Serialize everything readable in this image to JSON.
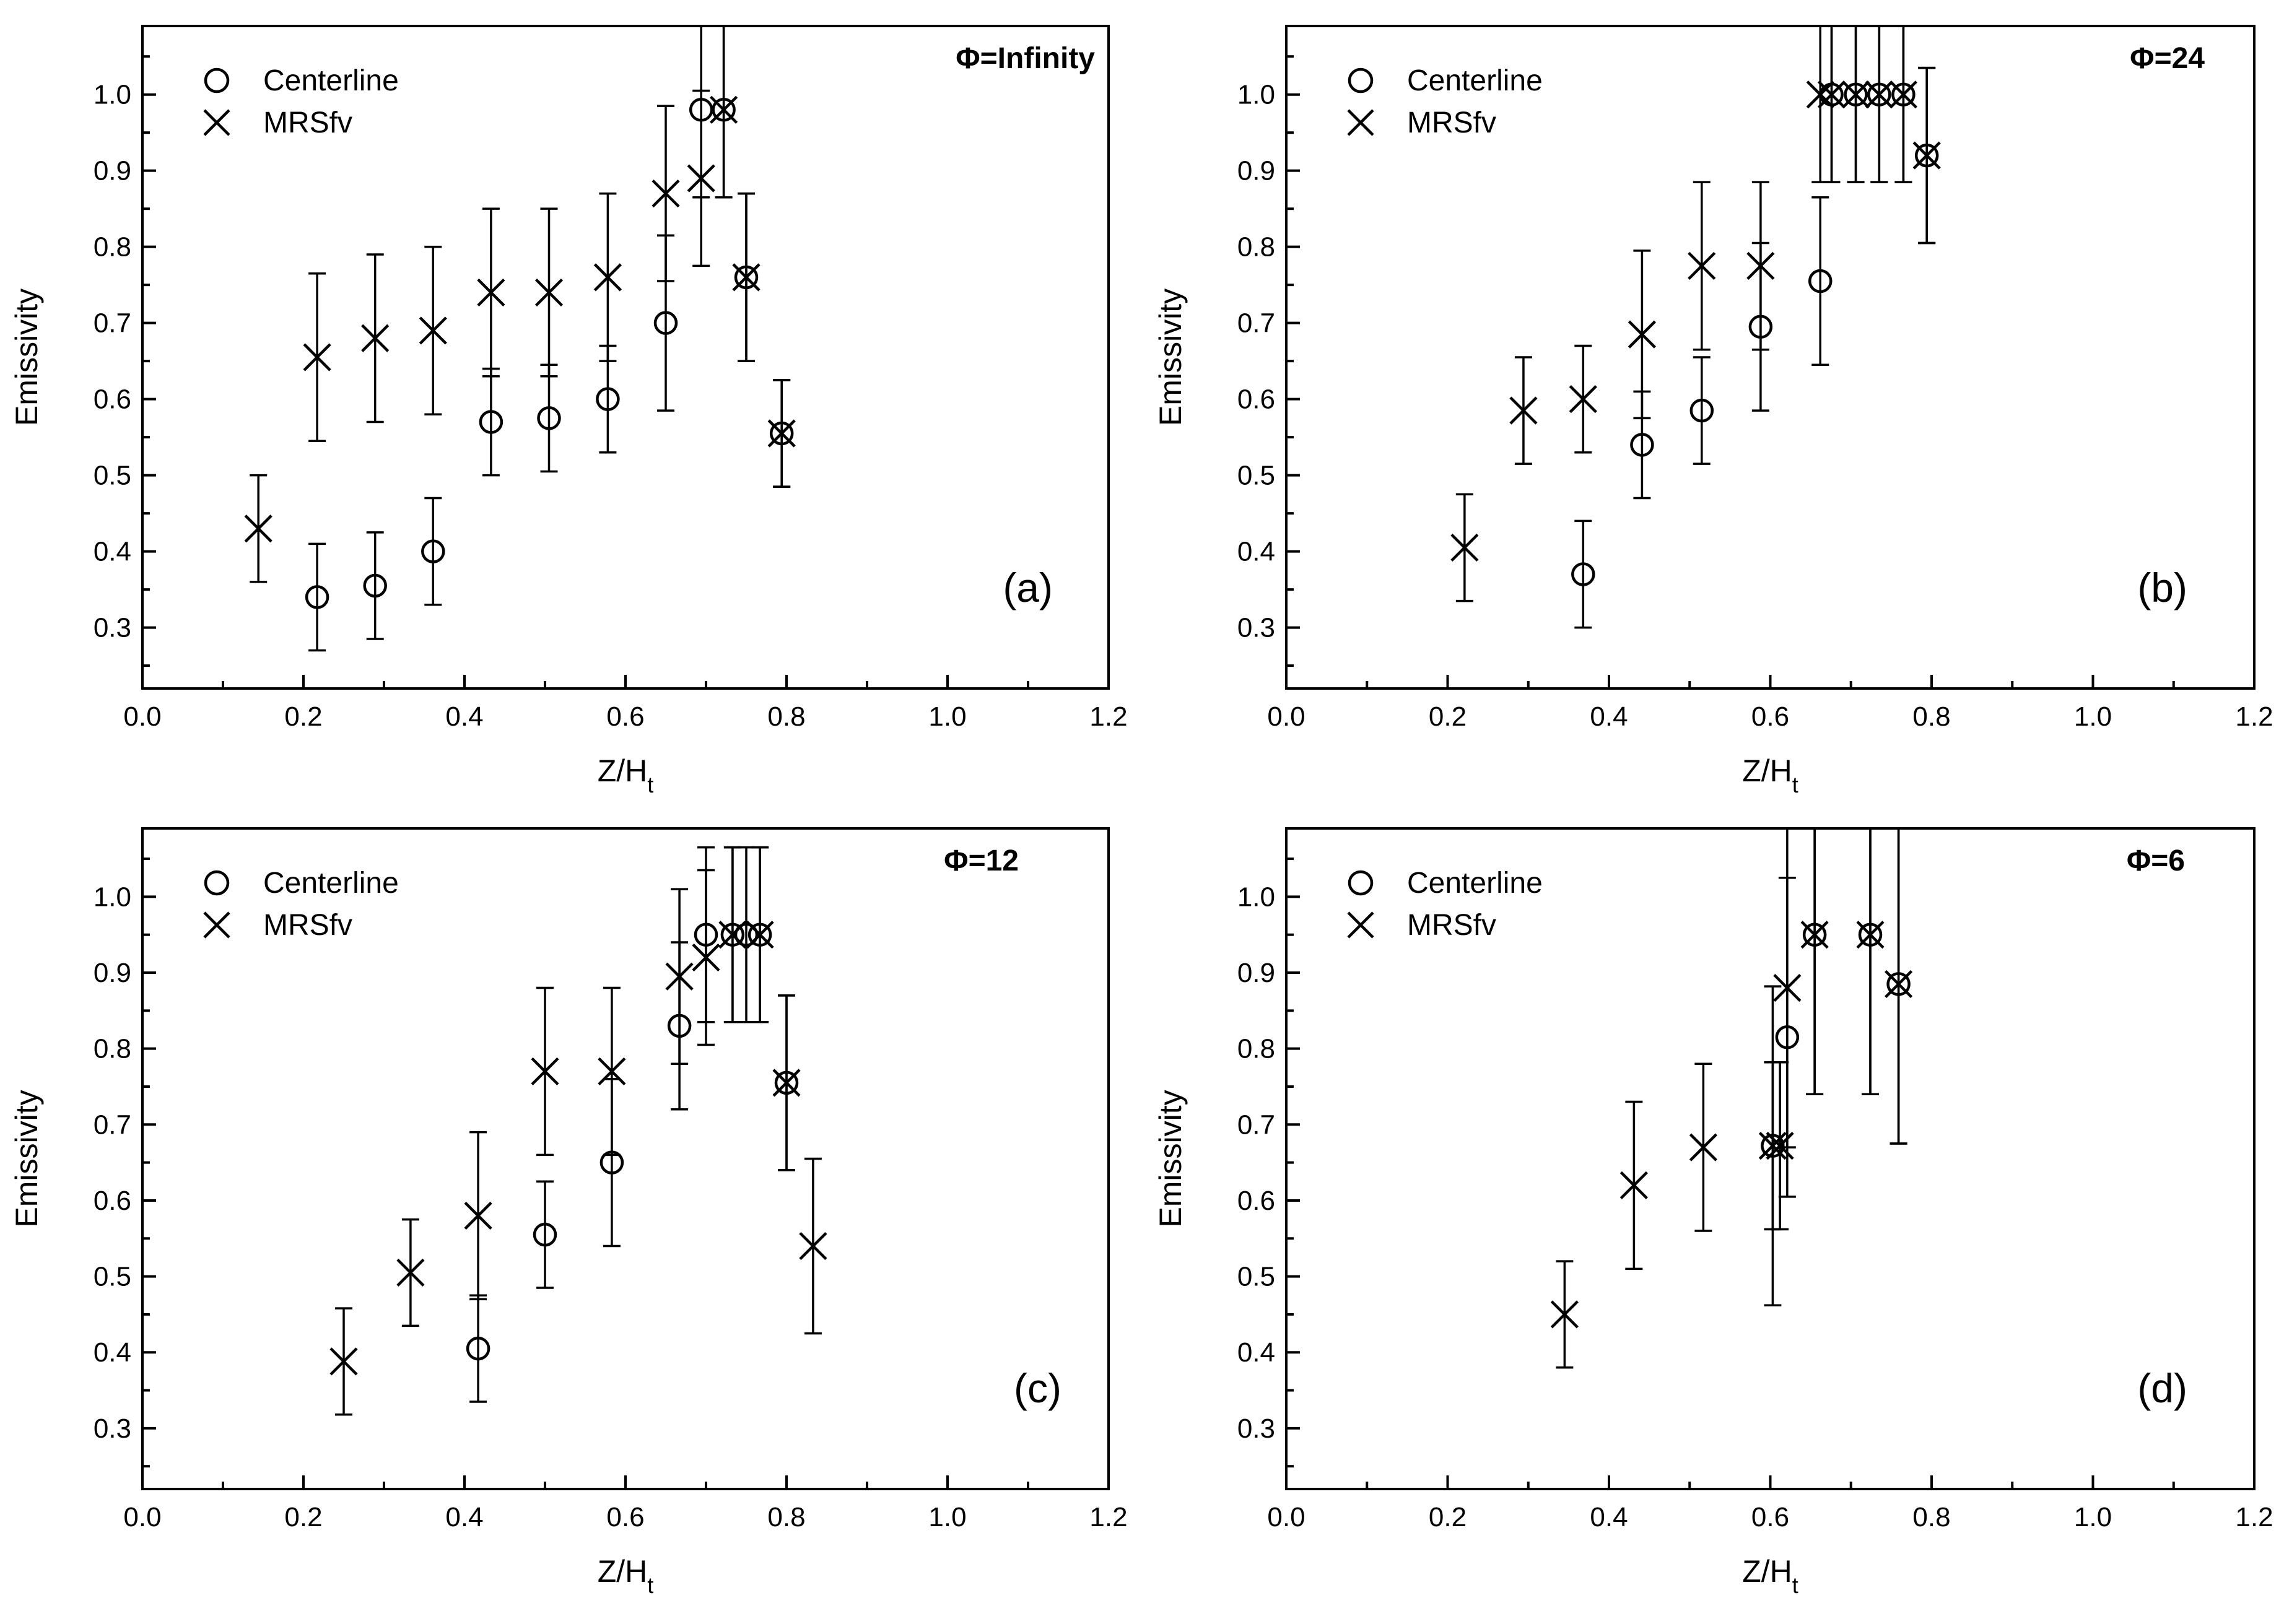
{
  "chart_data": [
    {
      "type": "scatter",
      "panel_label": "(a)",
      "title": "Φ=Infinity",
      "xlabel": "Z/H",
      "xlabel_sub": "t",
      "ylabel": "Emissivity",
      "xlim": [
        0.0,
        1.2
      ],
      "ylim": [
        0.22,
        1.09
      ],
      "x_ticks": [
        "0.0",
        "0.2",
        "0.4",
        "0.6",
        "0.8",
        "1.0",
        "1.2"
      ],
      "y_ticks": [
        "0.3",
        "0.4",
        "0.5",
        "0.6",
        "0.7",
        "0.8",
        "0.9",
        "1.0"
      ],
      "legend": [
        "Centerline",
        "MRSfv"
      ],
      "series": [
        {
          "name": "Centerline",
          "marker": "circle",
          "x": [
            0.217,
            0.289,
            0.361,
            0.433,
            0.505,
            0.578,
            0.65,
            0.694,
            0.722,
            0.75,
            0.794
          ],
          "y": [
            0.34,
            0.355,
            0.4,
            0.57,
            0.575,
            0.6,
            0.7,
            0.98,
            0.98,
            0.76,
            0.555
          ],
          "err": [
            0.07,
            0.07,
            0.07,
            0.07,
            0.07,
            0.07,
            0.115,
            0.115,
            0.115,
            0.11,
            0.07
          ]
        },
        {
          "name": "MRSfv",
          "marker": "x",
          "x": [
            0.144,
            0.217,
            0.289,
            0.361,
            0.433,
            0.505,
            0.578,
            0.65,
            0.694,
            0.722,
            0.75,
            0.794
          ],
          "y": [
            0.43,
            0.655,
            0.68,
            0.69,
            0.74,
            0.74,
            0.76,
            0.87,
            0.89,
            0.98,
            0.76,
            0.555
          ],
          "err": [
            0.07,
            0.11,
            0.11,
            0.11,
            0.11,
            0.11,
            0.11,
            0.115,
            0.115,
            0.115,
            0.11,
            0.07
          ]
        }
      ]
    },
    {
      "type": "scatter",
      "panel_label": "(b)",
      "title": "Φ=24",
      "xlabel": "Z/H",
      "xlabel_sub": "t",
      "ylabel": "Emissivity",
      "xlim": [
        0.0,
        1.2
      ],
      "ylim": [
        0.22,
        1.09
      ],
      "x_ticks": [
        "0.0",
        "0.2",
        "0.4",
        "0.6",
        "0.8",
        "1.0",
        "1.2"
      ],
      "y_ticks": [
        "0.3",
        "0.4",
        "0.5",
        "0.6",
        "0.7",
        "0.8",
        "0.9",
        "1.0"
      ],
      "legend": [
        "Centerline",
        "MRSfv"
      ],
      "series": [
        {
          "name": "Centerline",
          "marker": "circle",
          "x": [
            0.368,
            0.441,
            0.515,
            0.588,
            0.662,
            0.676,
            0.706,
            0.735,
            0.765,
            0.794
          ],
          "y": [
            0.37,
            0.54,
            0.585,
            0.695,
            0.755,
            1.0,
            1.0,
            1.0,
            1.0,
            0.92
          ],
          "err": [
            0.07,
            0.07,
            0.07,
            0.11,
            0.11,
            0.115,
            0.115,
            0.115,
            0.115,
            0.115
          ]
        },
        {
          "name": "MRSfv",
          "marker": "x",
          "x": [
            0.221,
            0.294,
            0.368,
            0.441,
            0.515,
            0.588,
            0.662,
            0.676,
            0.706,
            0.735,
            0.765,
            0.794
          ],
          "y": [
            0.405,
            0.585,
            0.6,
            0.685,
            0.775,
            0.775,
            1.0,
            1.0,
            1.0,
            1.0,
            1.0,
            0.92
          ],
          "err": [
            0.07,
            0.07,
            0.07,
            0.11,
            0.11,
            0.11,
            0.115,
            0.115,
            0.115,
            0.115,
            0.115,
            0.115
          ]
        }
      ]
    },
    {
      "type": "scatter",
      "panel_label": "(c)",
      "title": "Φ=12",
      "xlabel": "Z/H",
      "xlabel_sub": "t",
      "ylabel": "Emissivity",
      "xlim": [
        0.0,
        1.2
      ],
      "ylim": [
        0.22,
        1.09
      ],
      "x_ticks": [
        "0.0",
        "0.2",
        "0.4",
        "0.6",
        "0.8",
        "1.0",
        "1.2"
      ],
      "y_ticks": [
        "0.3",
        "0.4",
        "0.5",
        "0.6",
        "0.7",
        "0.8",
        "0.9",
        "1.0"
      ],
      "legend": [
        "Centerline",
        "MRSfv"
      ],
      "series": [
        {
          "name": "Centerline",
          "marker": "circle",
          "x": [
            0.417,
            0.5,
            0.583,
            0.667,
            0.7,
            0.733,
            0.75,
            0.767,
            0.8
          ],
          "y": [
            0.405,
            0.555,
            0.65,
            0.83,
            0.95,
            0.95,
            0.95,
            0.95,
            0.755
          ],
          "err": [
            0.07,
            0.07,
            0.11,
            0.11,
            0.115,
            0.115,
            0.115,
            0.115,
            0.115
          ]
        },
        {
          "name": "MRSfv",
          "marker": "x",
          "x": [
            0.25,
            0.333,
            0.417,
            0.5,
            0.583,
            0.667,
            0.7,
            0.733,
            0.767,
            0.8,
            0.833
          ],
          "y": [
            0.388,
            0.505,
            0.58,
            0.77,
            0.77,
            0.895,
            0.92,
            0.95,
            0.95,
            0.755,
            0.54
          ],
          "err": [
            0.07,
            0.07,
            0.11,
            0.11,
            0.11,
            0.115,
            0.115,
            0.115,
            0.115,
            0.115,
            0.115
          ]
        }
      ]
    },
    {
      "type": "scatter",
      "panel_label": "(d)",
      "title": "Φ=6",
      "xlabel": "Z/H",
      "xlabel_sub": "t",
      "ylabel": "Emissivity",
      "xlim": [
        0.0,
        1.2
      ],
      "ylim": [
        0.22,
        1.09
      ],
      "x_ticks": [
        "0.0",
        "0.2",
        "0.4",
        "0.6",
        "0.8",
        "1.0",
        "1.2"
      ],
      "y_ticks": [
        "0.3",
        "0.4",
        "0.5",
        "0.6",
        "0.7",
        "0.8",
        "0.9",
        "1.0"
      ],
      "legend": [
        "Centerline",
        "MRSfv"
      ],
      "series": [
        {
          "name": "Centerline",
          "marker": "circle",
          "x": [
            0.603,
            0.621,
            0.655,
            0.724,
            0.759
          ],
          "y": [
            0.672,
            0.815,
            0.95,
            0.95,
            0.885
          ],
          "err": [
            0.11,
            0.21,
            0.21,
            0.21,
            0.21
          ]
        },
        {
          "name": "MRSfv",
          "marker": "x",
          "x": [
            0.345,
            0.431,
            0.517,
            0.603,
            0.612,
            0.621,
            0.655,
            0.724,
            0.759
          ],
          "y": [
            0.45,
            0.62,
            0.67,
            0.672,
            0.672,
            0.88,
            0.95,
            0.95,
            0.885
          ],
          "err": [
            0.07,
            0.11,
            0.11,
            0.21,
            0.11,
            0.21,
            0.21,
            0.21,
            0.21
          ]
        }
      ]
    }
  ]
}
